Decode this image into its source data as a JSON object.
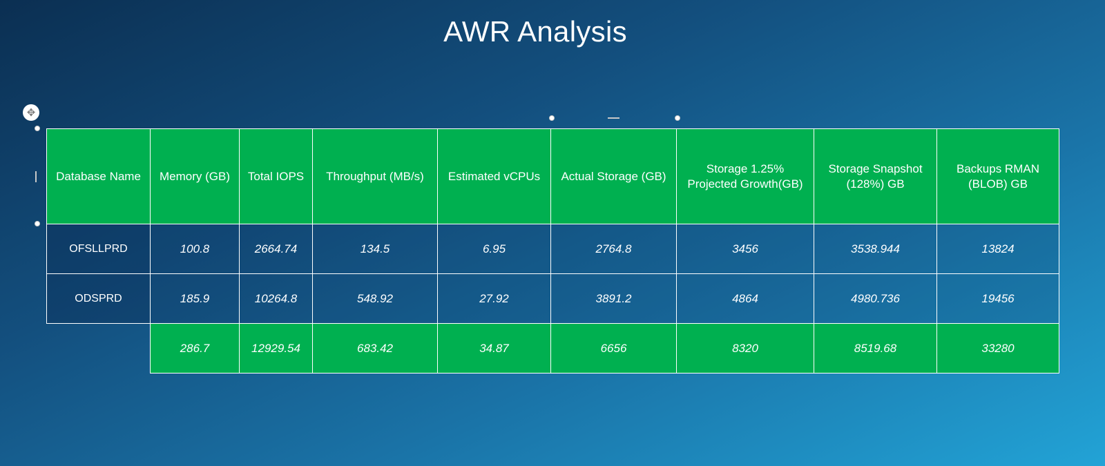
{
  "title": "AWR Analysis",
  "icons": {
    "move_handle": "move-arrows-icon"
  },
  "colors": {
    "header": "#00b050",
    "total_row": "#00b050",
    "grid_line": "#ffffff"
  },
  "table": {
    "headers": [
      "Database Name",
      "Memory (GB)",
      "Total IOPS",
      "Throughput (MB/s)",
      "Estimated vCPUs",
      "Actual Storage (GB)",
      "Storage 1.25% Projected Growth(GB)",
      "Storage Snapshot (128%) GB",
      "Backups RMAN (BLOB) GB"
    ],
    "rows": [
      [
        "OFSLLPRD",
        "100.8",
        "2664.74",
        "134.5",
        "6.95",
        "2764.8",
        "3456",
        "3538.944",
        "13824"
      ],
      [
        "ODSPRD",
        "185.9",
        "10264.8",
        "548.92",
        "27.92",
        "3891.2",
        "4864",
        "4980.736",
        "19456"
      ]
    ],
    "totals": [
      "286.7",
      "12929.54",
      "683.42",
      "34.87",
      "6656",
      "8320",
      "8519.68",
      "33280"
    ]
  }
}
